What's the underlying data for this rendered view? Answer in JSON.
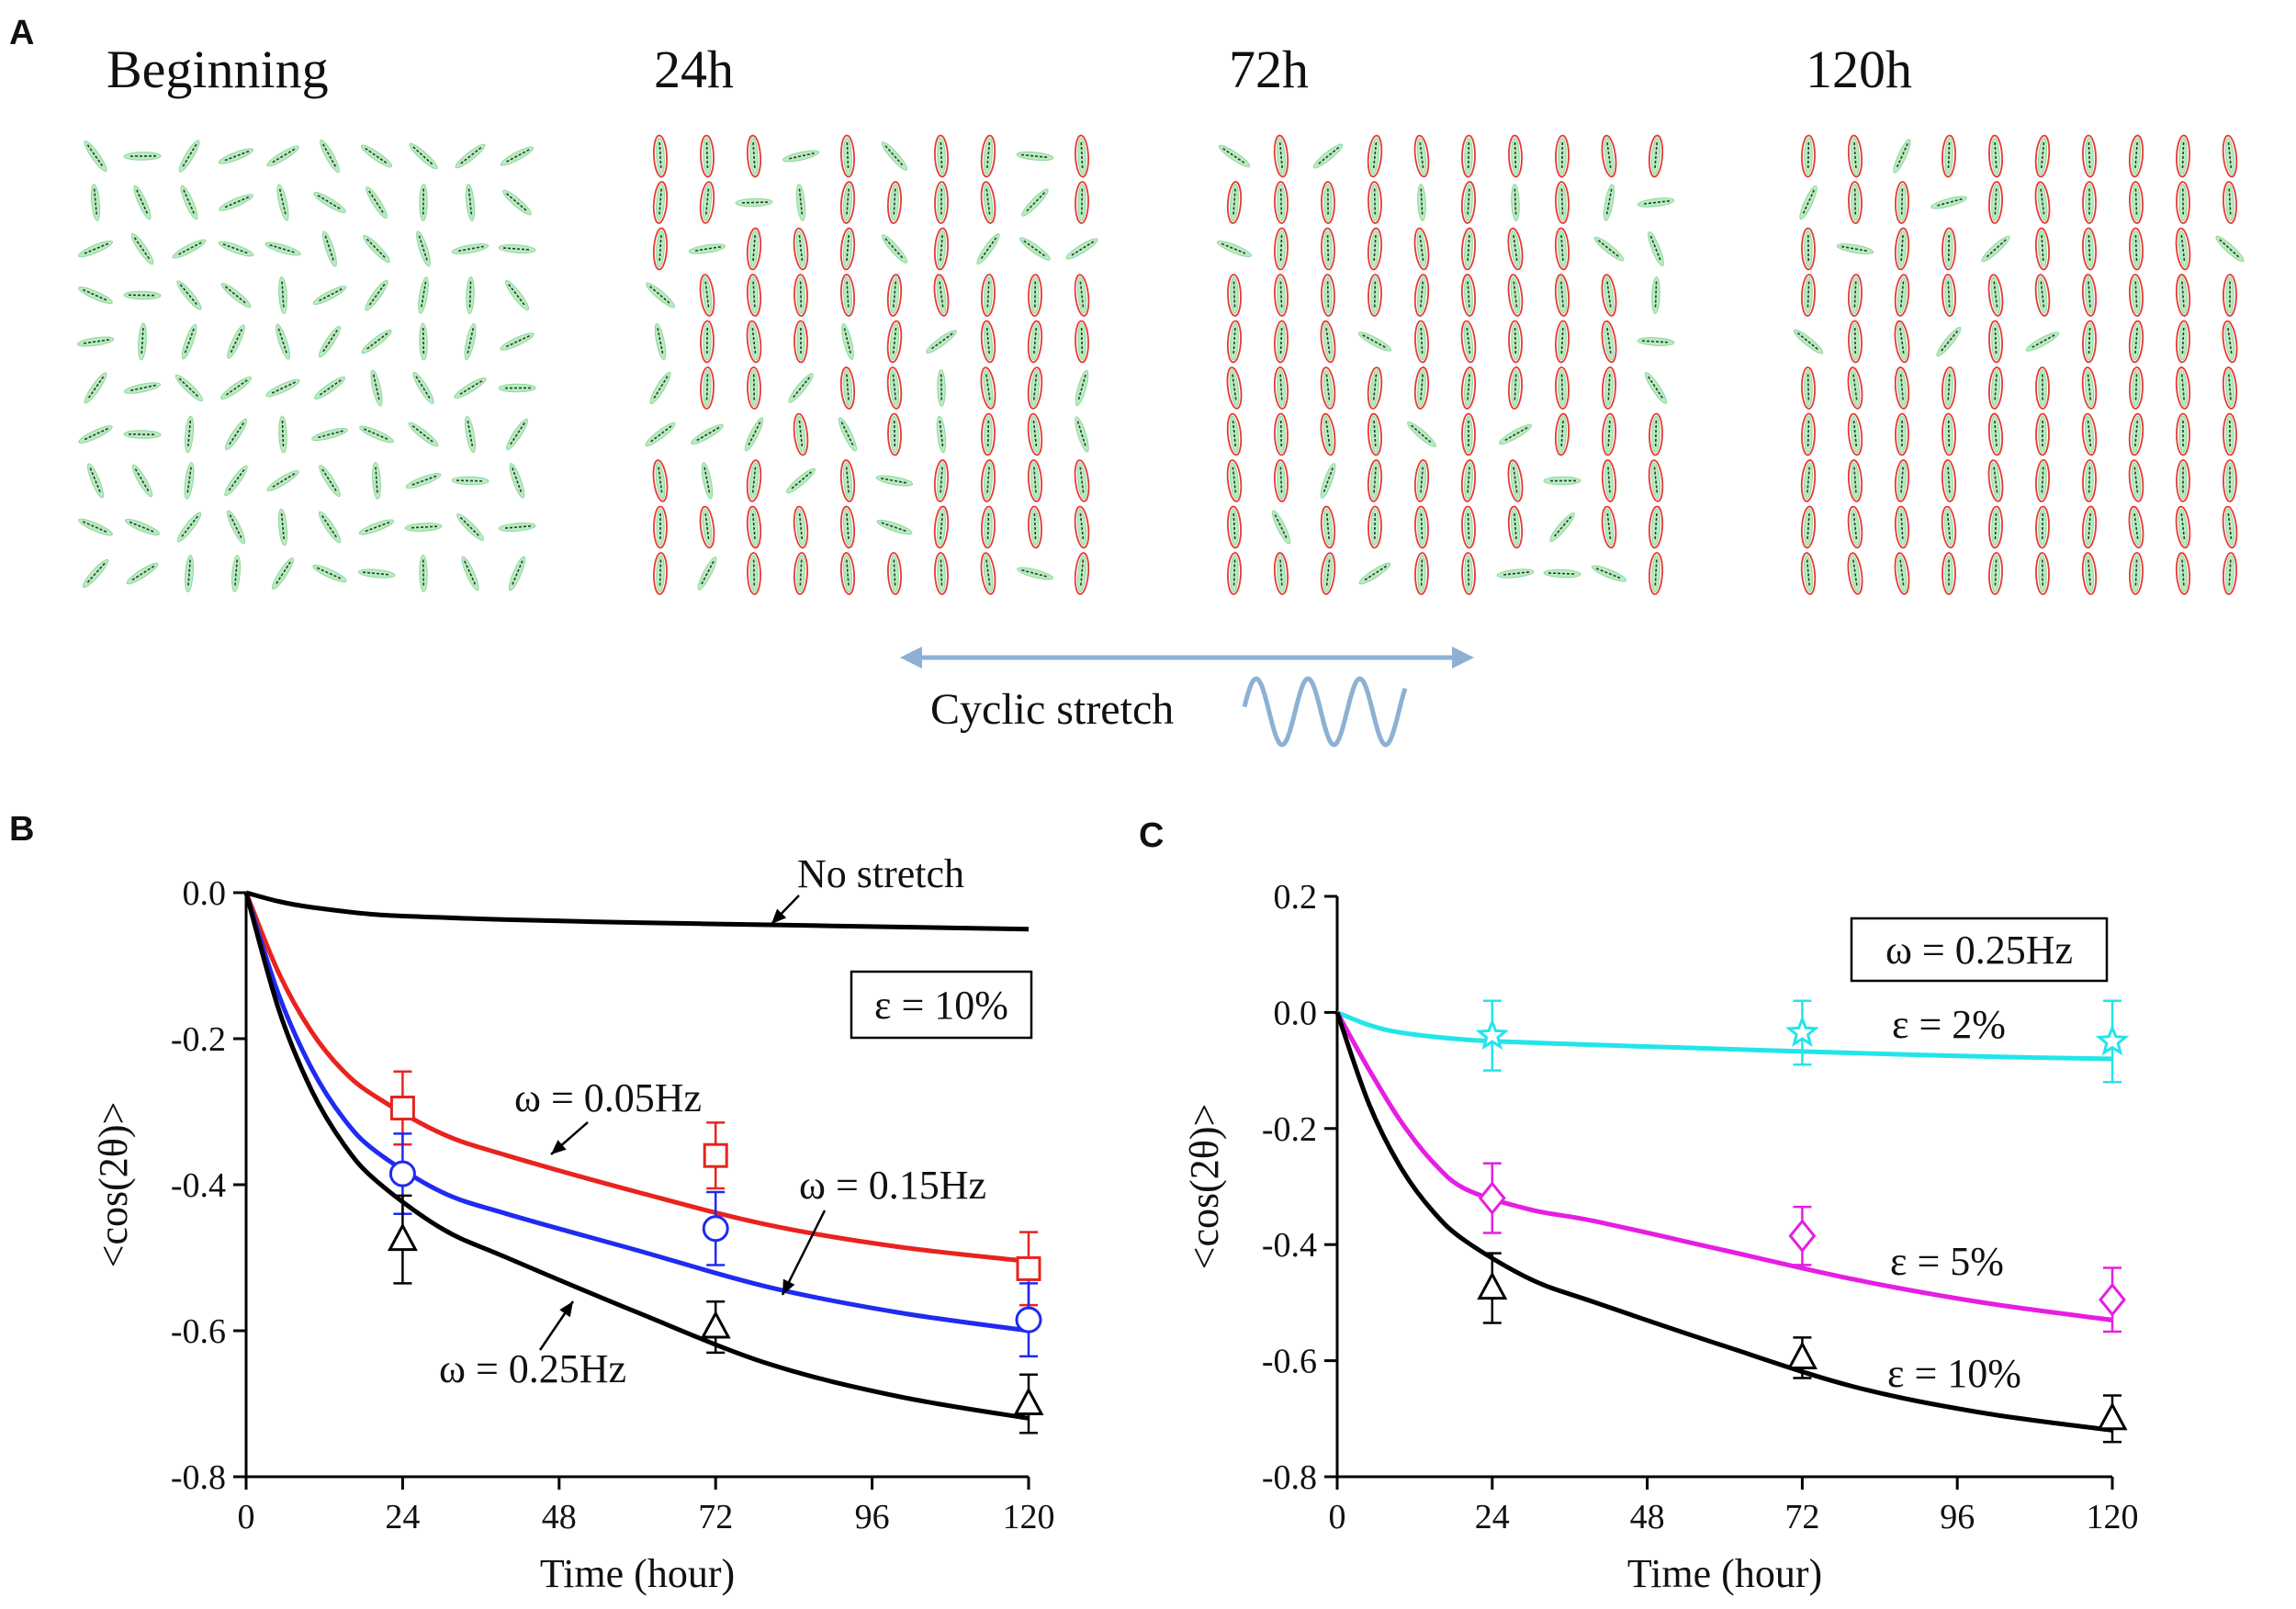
{
  "panel_letters": [
    "A",
    "B",
    "C"
  ],
  "panel_a": {
    "titles": [
      "Beginning",
      "24h",
      "72h",
      "120h"
    ],
    "grid": {
      "rows": 10,
      "cols": 10
    },
    "colors": {
      "cell_fill": "#b9ecc1",
      "cell_edge": "#8fd79b",
      "fiber": "#2b3a2b",
      "outline": "#e53935"
    },
    "stretch_label": "Cyclic stretch",
    "stretch_color": "#8db0d4",
    "stretch_text_color": "#4a78a8"
  },
  "chart_data": [
    {
      "type": "line",
      "panel": "B",
      "xlabel": "Time (hour)",
      "ylabel": "<cos(2θ)>",
      "xlim": [
        0,
        120
      ],
      "ylim": [
        -0.8,
        0.0
      ],
      "xticks": [
        0,
        24,
        48,
        72,
        96,
        120
      ],
      "yticks": [
        0.0,
        -0.2,
        -0.4,
        -0.6,
        -0.8
      ],
      "ytick_labels": [
        "0.0",
        "-0.2",
        "-0.4",
        "-0.6",
        "-0.8"
      ],
      "legend_box": "ε = 10%",
      "series": [
        {
          "name": "No stretch",
          "color": "#000000",
          "x": [
            0,
            5,
            10,
            20,
            30,
            40,
            60,
            80,
            100,
            120
          ],
          "y": [
            0,
            -0.012,
            -0.02,
            -0.03,
            -0.034,
            -0.037,
            -0.041,
            -0.044,
            -0.047,
            -0.05
          ]
        },
        {
          "name": "ω = 0.05Hz",
          "color": "#e8231f",
          "x": [
            0,
            5,
            10,
            15,
            20,
            30,
            40,
            60,
            80,
            100,
            120
          ],
          "y": [
            0,
            -0.11,
            -0.19,
            -0.245,
            -0.28,
            -0.33,
            -0.36,
            -0.41,
            -0.455,
            -0.485,
            -0.505
          ],
          "points": [
            {
              "x": 24,
              "y": -0.295,
              "err": 0.05
            },
            {
              "x": 72,
              "y": -0.36,
              "err": 0.045
            },
            {
              "x": 120,
              "y": -0.515,
              "err": 0.05
            }
          ],
          "marker": "square"
        },
        {
          "name": "ω = 0.15Hz",
          "color": "#1f2bf0",
          "x": [
            0,
            5,
            10,
            15,
            20,
            30,
            40,
            60,
            80,
            100,
            120
          ],
          "y": [
            0,
            -0.14,
            -0.24,
            -0.31,
            -0.355,
            -0.41,
            -0.44,
            -0.49,
            -0.54,
            -0.575,
            -0.6
          ],
          "points": [
            {
              "x": 24,
              "y": -0.385,
              "err": 0.055
            },
            {
              "x": 72,
              "y": -0.46,
              "err": 0.05
            },
            {
              "x": 120,
              "y": -0.585,
              "err": 0.05
            }
          ],
          "marker": "circle"
        },
        {
          "name": "ω = 0.25Hz",
          "color": "#000000",
          "x": [
            0,
            5,
            10,
            15,
            20,
            30,
            40,
            60,
            80,
            100,
            120
          ],
          "y": [
            0,
            -0.16,
            -0.27,
            -0.345,
            -0.395,
            -0.46,
            -0.5,
            -0.575,
            -0.645,
            -0.69,
            -0.72
          ],
          "points": [
            {
              "x": 24,
              "y": -0.475,
              "err": 0.06
            },
            {
              "x": 72,
              "y": -0.595,
              "err": 0.035
            },
            {
              "x": 120,
              "y": -0.7,
              "err": 0.04
            }
          ],
          "marker": "triangle"
        }
      ]
    },
    {
      "type": "line",
      "panel": "C",
      "xlabel": "Time (hour)",
      "ylabel": "<cos(2θ)>",
      "xlim": [
        0,
        120
      ],
      "ylim": [
        -0.8,
        0.2
      ],
      "xticks": [
        0,
        24,
        48,
        72,
        96,
        120
      ],
      "yticks": [
        0.2,
        0.0,
        -0.2,
        -0.4,
        -0.6,
        -0.8
      ],
      "ytick_labels": [
        "0.2",
        "0.0",
        "-0.2",
        "-0.4",
        "-0.6",
        "-0.8"
      ],
      "legend_box": "ω = 0.25Hz",
      "series": [
        {
          "name": "ε = 2%",
          "color": "#22e5ea",
          "x": [
            0,
            5,
            10,
            20,
            30,
            40,
            60,
            80,
            100,
            120
          ],
          "y": [
            0,
            -0.022,
            -0.035,
            -0.047,
            -0.052,
            -0.056,
            -0.063,
            -0.07,
            -0.076,
            -0.08
          ],
          "points": [
            {
              "x": 24,
              "y": -0.04,
              "err": 0.06
            },
            {
              "x": 72,
              "y": -0.035,
              "err": 0.055
            },
            {
              "x": 120,
              "y": -0.05,
              "err": 0.07
            }
          ],
          "marker": "star"
        },
        {
          "name": "ε = 5%",
          "color": "#e51ee2",
          "x": [
            0,
            5,
            10,
            15,
            20,
            30,
            40,
            60,
            80,
            100,
            120
          ],
          "y": [
            0,
            -0.1,
            -0.19,
            -0.26,
            -0.305,
            -0.34,
            -0.36,
            -0.41,
            -0.46,
            -0.5,
            -0.53
          ],
          "points": [
            {
              "x": 24,
              "y": -0.32,
              "err": 0.06
            },
            {
              "x": 72,
              "y": -0.385,
              "err": 0.05
            },
            {
              "x": 120,
              "y": -0.495,
              "err": 0.055
            }
          ],
          "marker": "diamond"
        },
        {
          "name": "ε = 10%",
          "color": "#000000",
          "x": [
            0,
            5,
            10,
            15,
            20,
            30,
            40,
            60,
            80,
            100,
            120
          ],
          "y": [
            0,
            -0.16,
            -0.27,
            -0.345,
            -0.395,
            -0.46,
            -0.5,
            -0.575,
            -0.645,
            -0.69,
            -0.72
          ],
          "points": [
            {
              "x": 24,
              "y": -0.475,
              "err": 0.06
            },
            {
              "x": 72,
              "y": -0.595,
              "err": 0.035
            },
            {
              "x": 120,
              "y": -0.7,
              "err": 0.04
            }
          ],
          "marker": "triangle"
        }
      ]
    }
  ]
}
